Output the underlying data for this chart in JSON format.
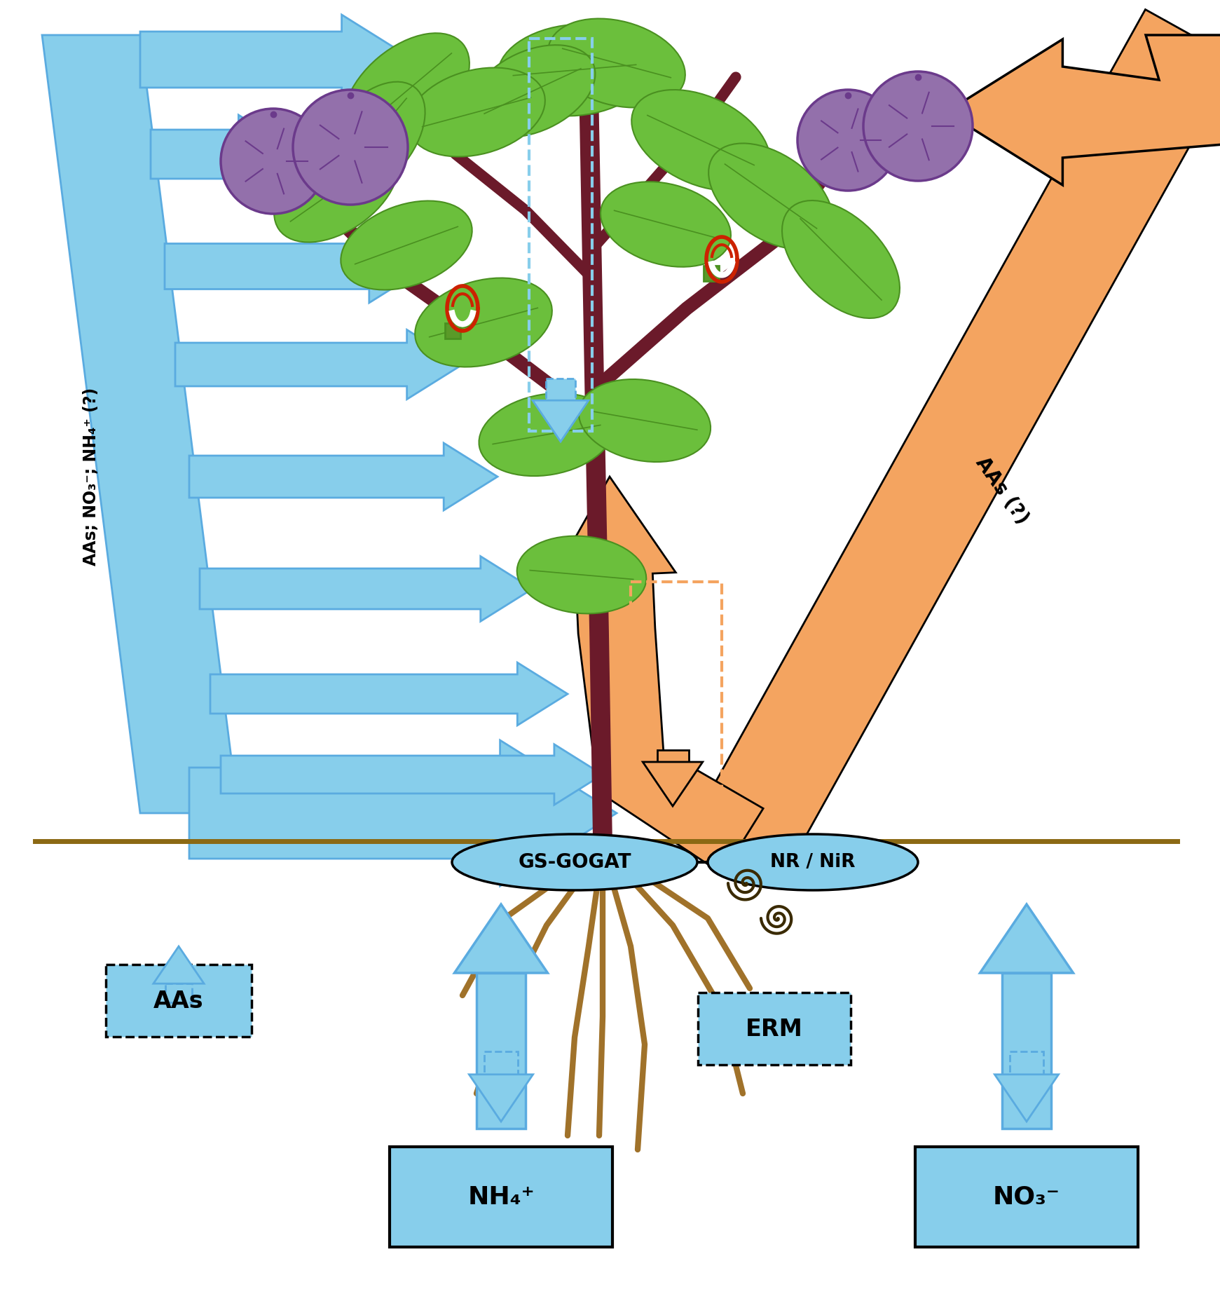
{
  "bg_color": "#ffffff",
  "blue": "#87CEEB",
  "blue_edge": "#5AABE0",
  "orange": "#F4A460",
  "orange2": "#E8946A",
  "brown_root": "#A0722A",
  "soil_color": "#8B6914",
  "green_leaf": "#6BBF3C",
  "green_leaf2": "#5AAA2C",
  "green_dark": "#4A9020",
  "green_joint": "#5A9A28",
  "purple_berry": "#9370AB",
  "purple_berry_edge": "#6B3A8B",
  "stem_color": "#6B1A2A",
  "red": "#CC2200",
  "text_color": "#000000",
  "label_AAs_NO3_NH4": "AAs; NO₃⁻; NH₄⁺ (?)",
  "label_AAs_right": "AAs (?)",
  "label_GS_GOGAT": "GS-GOGAT",
  "label_NR_NiR": "NR / NiR",
  "label_AAs_box": "AAs",
  "label_NH4": "NH₄⁺",
  "label_NO3": "NO₃⁻",
  "label_ERM": "ERM",
  "figsize": [
    17.41,
    18.66
  ],
  "dpi": 100,
  "xlim": [
    0,
    1741
  ],
  "ylim": [
    0,
    1866
  ]
}
